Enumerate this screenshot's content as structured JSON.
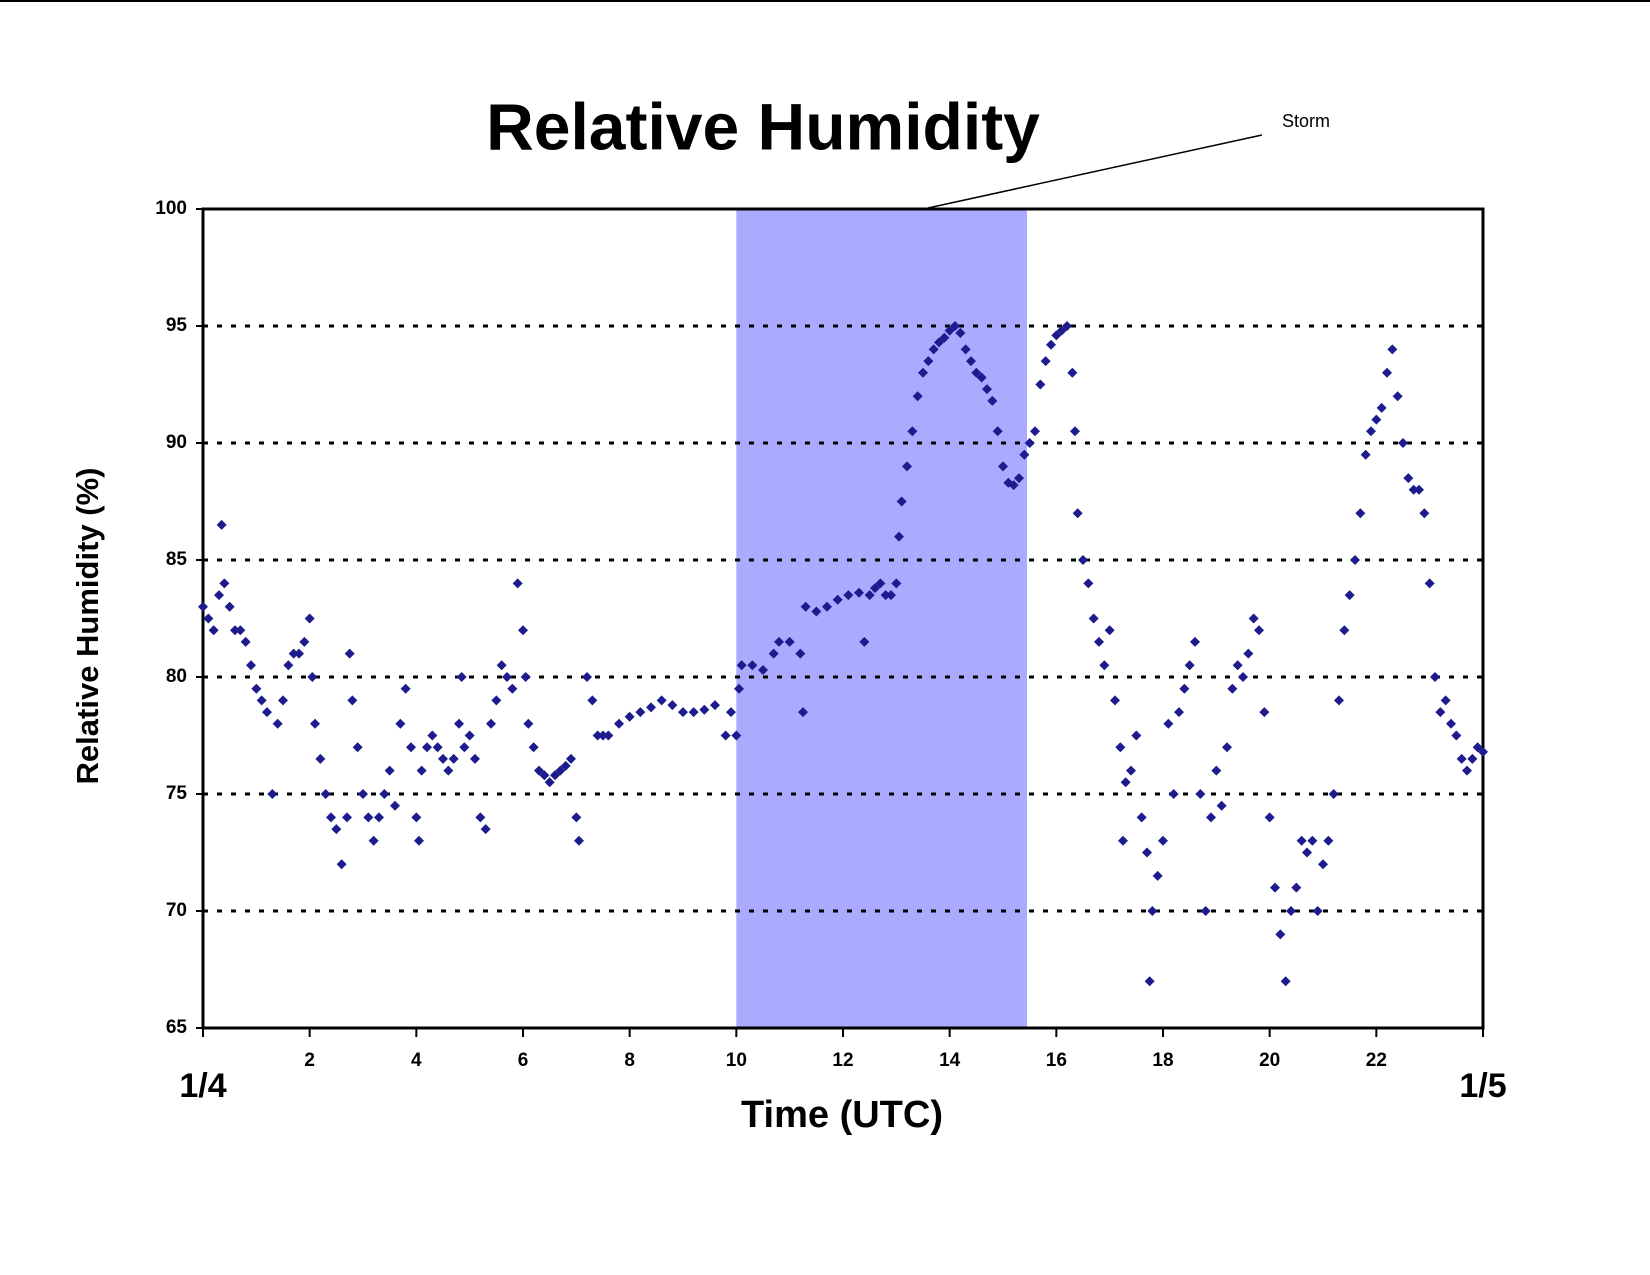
{
  "chart_data": {
    "type": "scatter",
    "title": "Relative Humidity",
    "xlabel": "Time (UTC)",
    "ylabel": "Relative Humidity (%)",
    "xlim": [
      0,
      24
    ],
    "ylim": [
      65,
      100
    ],
    "xticks": [
      {
        "value": 0,
        "label": "1/4"
      },
      2,
      4,
      6,
      8,
      10,
      12,
      14,
      16,
      18,
      20,
      22,
      {
        "value": 24,
        "label": "1/5"
      }
    ],
    "yticks": [
      65,
      70,
      75,
      80,
      85,
      90,
      95,
      100
    ],
    "grid": true,
    "color": "#1c1c8e",
    "marker": "diamond",
    "shaded_span": {
      "x": [
        10,
        15.45
      ],
      "color": "#aaaaff"
    },
    "annotations": [
      {
        "text": "Storm"
      }
    ],
    "x": [
      0.0,
      0.1,
      0.2,
      0.3,
      0.35,
      0.4,
      0.5,
      0.6,
      0.7,
      0.8,
      0.9,
      1.0,
      1.1,
      1.2,
      1.3,
      1.4,
      1.5,
      1.6,
      1.7,
      1.8,
      1.9,
      2.0,
      2.05,
      2.1,
      2.2,
      2.3,
      2.4,
      2.5,
      2.6,
      2.7,
      2.75,
      2.8,
      2.9,
      3.0,
      3.1,
      3.2,
      3.3,
      3.4,
      3.5,
      3.6,
      3.7,
      3.8,
      3.9,
      4.0,
      4.05,
      4.1,
      4.2,
      4.3,
      4.4,
      4.5,
      4.6,
      4.7,
      4.8,
      4.85,
      4.9,
      5.0,
      5.1,
      5.2,
      5.3,
      5.4,
      5.5,
      5.6,
      5.7,
      5.8,
      5.9,
      6.0,
      6.05,
      6.1,
      6.2,
      6.3,
      6.4,
      6.5,
      6.6,
      6.7,
      6.8,
      6.9,
      7.0,
      7.05,
      7.2,
      7.3,
      7.4,
      7.5,
      7.6,
      7.8,
      8.0,
      8.2,
      8.4,
      8.6,
      8.8,
      9.0,
      9.2,
      9.4,
      9.6,
      9.8,
      9.9,
      10.0,
      10.05,
      10.1,
      10.3,
      10.5,
      10.7,
      10.8,
      11.0,
      11.2,
      11.25,
      11.3,
      11.5,
      11.7,
      11.9,
      12.1,
      12.3,
      12.4,
      12.5,
      12.6,
      12.7,
      12.8,
      12.9,
      13.0,
      13.05,
      13.1,
      13.2,
      13.3,
      13.4,
      13.5,
      13.6,
      13.7,
      13.8,
      13.9,
      14.0,
      14.1,
      14.2,
      14.3,
      14.4,
      14.5,
      14.6,
      14.7,
      14.8,
      14.9,
      15.0,
      15.1,
      15.2,
      15.3,
      15.4,
      15.5,
      15.6,
      15.7,
      15.8,
      15.9,
      16.0,
      16.1,
      16.2,
      16.3,
      16.35,
      16.4,
      16.5,
      16.6,
      16.7,
      16.8,
      16.9,
      17.0,
      17.1,
      17.2,
      17.25,
      17.3,
      17.4,
      17.5,
      17.6,
      17.7,
      17.75,
      17.8,
      17.9,
      18.0,
      18.1,
      18.2,
      18.3,
      18.4,
      18.5,
      18.6,
      18.7,
      18.8,
      18.9,
      19.0,
      19.1,
      19.2,
      19.3,
      19.4,
      19.5,
      19.6,
      19.7,
      19.8,
      19.9,
      20.0,
      20.1,
      20.2,
      20.3,
      20.4,
      20.5,
      20.6,
      20.7,
      20.8,
      20.9,
      21.0,
      21.1,
      21.2,
      21.3,
      21.4,
      21.5,
      21.6,
      21.7,
      21.8,
      21.9,
      22.0,
      22.1,
      22.2,
      22.3,
      22.4,
      22.5,
      22.6,
      22.7,
      22.8,
      22.9,
      23.0,
      23.1,
      23.2,
      23.3,
      23.4,
      23.5,
      23.6,
      23.7,
      23.8,
      23.9,
      24.0
    ],
    "values": [
      83,
      82.5,
      82,
      83.5,
      86.5,
      84,
      83,
      82,
      82,
      81.5,
      80.5,
      79.5,
      79,
      78.5,
      75,
      78,
      79,
      80.5,
      81,
      81,
      81.5,
      82.5,
      80,
      78,
      76.5,
      75,
      74,
      73.5,
      72,
      74,
      81,
      79,
      77,
      75,
      74,
      73,
      74,
      75,
      76,
      74.5,
      78,
      79.5,
      77,
      74,
      73,
      76,
      77,
      77.5,
      77,
      76.5,
      76,
      76.5,
      78,
      80,
      77,
      77.5,
      76.5,
      74,
      73.5,
      78,
      79,
      80.5,
      80,
      79.5,
      84,
      82,
      80,
      78,
      77,
      76,
      75.8,
      75.5,
      75.8,
      76,
      76.2,
      76.5,
      74,
      73,
      80,
      79,
      77.5,
      77.5,
      77.5,
      78,
      78.3,
      78.5,
      78.7,
      79,
      78.8,
      78.5,
      78.5,
      78.6,
      78.8,
      77.5,
      78.5,
      77.5,
      79.5,
      80.5,
      80.5,
      80.3,
      81,
      81.5,
      81.5,
      81,
      78.5,
      83,
      82.8,
      83,
      83.3,
      83.5,
      83.6,
      81.5,
      83.5,
      83.8,
      84,
      83.5,
      83.5,
      84,
      86,
      87.5,
      89,
      90.5,
      92,
      93,
      93.5,
      94,
      94.3,
      94.5,
      94.8,
      95,
      94.7,
      94,
      93.5,
      93,
      92.8,
      92.3,
      91.8,
      90.5,
      89,
      88.3,
      88.2,
      88.5,
      89.5,
      90,
      90.5,
      92.5,
      93.5,
      94.2,
      94.6,
      94.8,
      95,
      93,
      90.5,
      87,
      85,
      84,
      82.5,
      81.5,
      80.5,
      82,
      79,
      77,
      73,
      75.5,
      76,
      77.5,
      74,
      72.5,
      67,
      70,
      71.5,
      73,
      78,
      75,
      78.5,
      79.5,
      80.5,
      81.5,
      75,
      70,
      74,
      76,
      74.5,
      77,
      79.5,
      80.5,
      80,
      81,
      82.5,
      82,
      78.5,
      74,
      71,
      69,
      67,
      70,
      71,
      73,
      72.5,
      73,
      70,
      72,
      73,
      75,
      79,
      82,
      83.5,
      85,
      87,
      89.5,
      90.5,
      91,
      91.5,
      93,
      94,
      92,
      90,
      88.5,
      88,
      88,
      87,
      84,
      80,
      78.5,
      79,
      78,
      77.5,
      76.5,
      76,
      76.5,
      77,
      76.8
    ]
  }
}
